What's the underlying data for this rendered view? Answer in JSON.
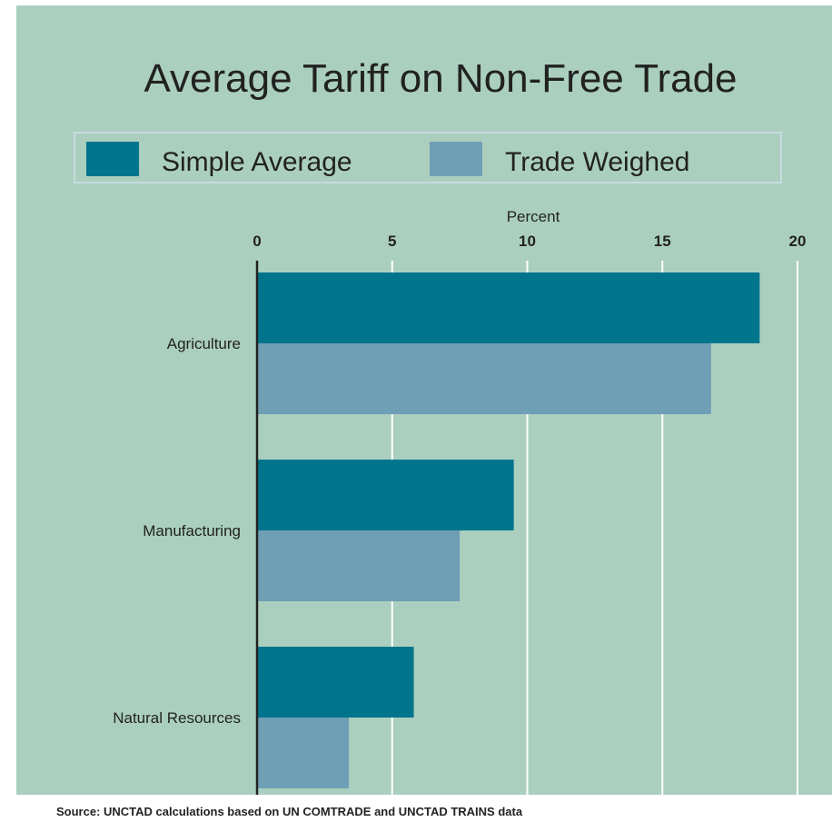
{
  "colors": {
    "background": "#abcfbe",
    "simple_average": "#00758c",
    "trade_weighed": "#6f9fb5",
    "gridline": "#ffffff",
    "axis": "#222222",
    "legend_border": "#c7dbe2"
  },
  "chart_data": {
    "type": "bar",
    "orientation": "horizontal",
    "title": "Average Tariff on Non-Free Trade",
    "xlabel": "Percent",
    "ylabel": "",
    "xlim": [
      0,
      20
    ],
    "xticks": [
      0,
      5,
      10,
      15,
      20
    ],
    "grid": true,
    "legend_position": "top",
    "categories": [
      "Agriculture",
      "Manufacturing",
      "Natural Resources"
    ],
    "series": [
      {
        "name": "Simple Average",
        "values": [
          18.6,
          9.5,
          5.8
        ]
      },
      {
        "name": "Trade Weighed",
        "values": [
          16.8,
          7.5,
          3.4
        ]
      }
    ],
    "source": "Source: UNCTAD calculations based on UN COMTRADE and UNCTAD TRAINS data"
  }
}
